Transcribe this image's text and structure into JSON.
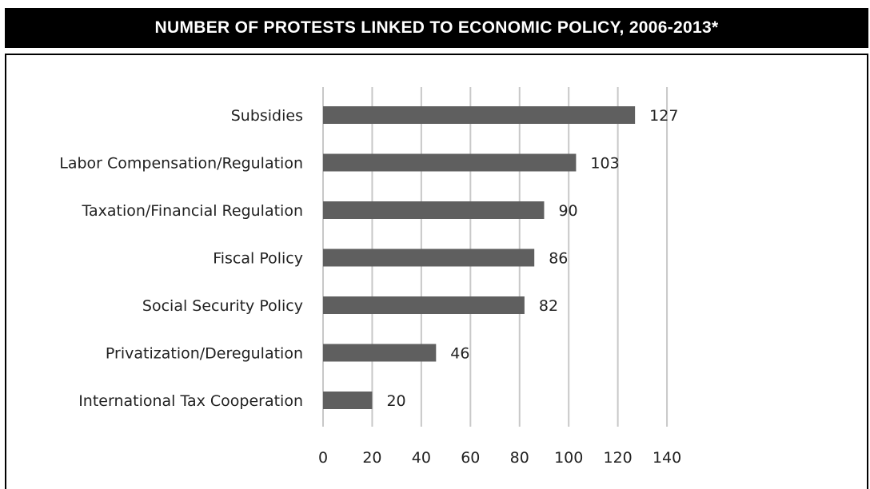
{
  "title": "NUMBER OF PROTESTS LINKED TO ECONOMIC POLICY, 2006-2013*",
  "colors": {
    "bar": "#5f5f5f",
    "grid": "#c8c8c8",
    "title_bg": "#000000"
  },
  "chart_data": {
    "type": "bar",
    "orientation": "horizontal",
    "title": "NUMBER OF PROTESTS LINKED TO ECONOMIC POLICY, 2006-2013*",
    "xlabel": "",
    "ylabel": "",
    "categories": [
      "Subsidies",
      "Labor Compensation/Regulation",
      "Taxation/Financial Regulation",
      "Fiscal Policy",
      "Social Security Policy",
      "Privatization/Deregulation",
      "International Tax Cooperation"
    ],
    "values": [
      127,
      103,
      90,
      86,
      82,
      46,
      20
    ],
    "xlim": [
      0,
      140
    ],
    "xticks": [
      0,
      20,
      40,
      60,
      80,
      100,
      120,
      140
    ],
    "grid": "vertical",
    "legend": "none",
    "data_labels": true
  }
}
